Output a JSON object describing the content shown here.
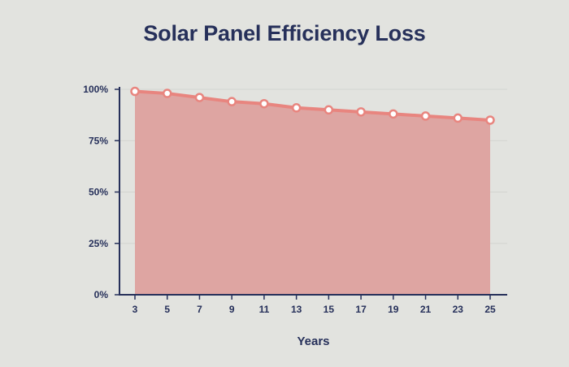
{
  "chart_data": {
    "type": "area",
    "title": "Solar Panel Efficiency Loss",
    "xlabel": "Years",
    "ylabel": "",
    "x": [
      3,
      5,
      7,
      9,
      11,
      13,
      15,
      17,
      19,
      21,
      23,
      25
    ],
    "series": [
      {
        "values": [
          99,
          98,
          96,
          94,
          93,
          91,
          90,
          89,
          88,
          87,
          86,
          85
        ]
      }
    ],
    "x_ticks": [
      "3",
      "5",
      "7",
      "9",
      "11",
      "13",
      "15",
      "17",
      "19",
      "21",
      "23",
      "25"
    ],
    "y_ticks": [
      "0%",
      "25%",
      "50%",
      "75%",
      "100%"
    ],
    "y_tick_values": [
      0,
      25,
      50,
      75,
      100
    ],
    "ylim": [
      0,
      100
    ],
    "grid": true,
    "legend": "none",
    "colors": {
      "fill": "#dea5a2",
      "line": "#e8857f",
      "marker_fill": "#ffffff",
      "axis": "#26305a",
      "grid": "#d3d4d0"
    }
  }
}
